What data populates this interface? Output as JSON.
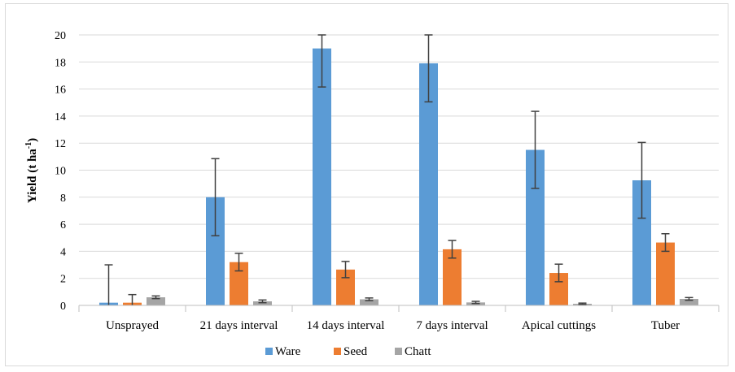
{
  "chart_data": {
    "type": "bar",
    "categories": [
      "Unsprayed",
      "21 days interval",
      "14 days interval",
      "7 days interval",
      "Apical cuttings",
      "Tuber"
    ],
    "series": [
      {
        "name": "Ware",
        "color": "#5b9bd5",
        "values": [
          0.2,
          8.0,
          19.0,
          17.9,
          11.5,
          9.25
        ],
        "error": [
          2.8,
          2.85,
          2.85,
          2.85,
          2.85,
          2.8
        ]
      },
      {
        "name": "Seed",
        "color": "#ed7d31",
        "values": [
          0.2,
          3.2,
          2.65,
          4.15,
          2.4,
          4.65
        ],
        "error": [
          0.6,
          0.65,
          0.6,
          0.65,
          0.65,
          0.65
        ]
      },
      {
        "name": "Chatt",
        "color": "#a5a5a5",
        "values": [
          0.6,
          0.3,
          0.45,
          0.22,
          0.12,
          0.48
        ],
        "error": [
          0.1,
          0.1,
          0.1,
          0.08,
          0.05,
          0.1
        ]
      }
    ],
    "ylabel_main": "Yield (t ha",
    "ylabel_sup": "-1",
    "ylabel_close": ")",
    "ylim": [
      0,
      20
    ],
    "yticks": [
      0,
      2,
      4,
      6,
      8,
      10,
      12,
      14,
      16,
      18,
      20
    ],
    "grid": true,
    "legend_position": "bottom"
  }
}
